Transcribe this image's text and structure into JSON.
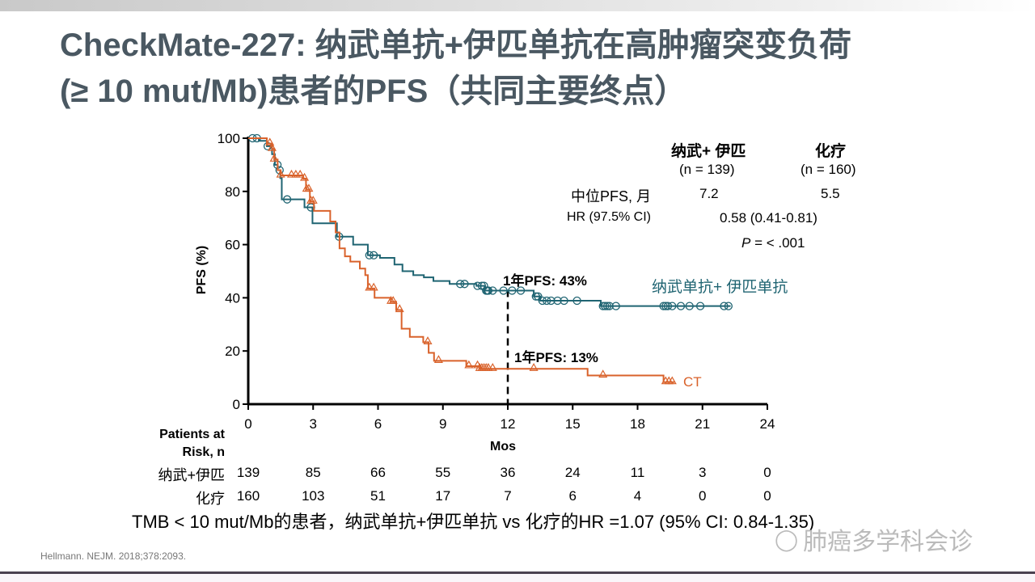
{
  "title": {
    "line1": "CheckMate-227: 纳武单抗+伊匹单抗在高肿瘤突变负荷",
    "line2": "(≥ 10 mut/Mb)患者的PFS（共同主要终点）"
  },
  "stats_table": {
    "col1_header": "纳武+ 伊匹",
    "col1_n": "(n = 139)",
    "col2_header": "化疗",
    "col2_n": "(n = 160)",
    "median_label": "中位PFS, 月",
    "median_col1": "7.2",
    "median_col2": "5.5",
    "hr_label": "HR (97.5% CI)",
    "hr_value": "0.58 (0.41-0.81)",
    "p_label": "P",
    "p_value": " = < .001"
  },
  "annotations": {
    "nivo_1yr": "1年PFS: 43%",
    "ct_1yr": "1年PFS: 13%"
  },
  "risk_table": {
    "header_line1": "Patients at",
    "header_line2": "Risk, n",
    "rows": [
      {
        "label": "纳武+伊匹",
        "values": [
          "139",
          "85",
          "66",
          "55",
          "36",
          "24",
          "11",
          "3",
          "0"
        ]
      },
      {
        "label": "化疗",
        "values": [
          "160",
          "103",
          "51",
          "17",
          "7",
          "6",
          "4",
          "0",
          "0"
        ]
      }
    ]
  },
  "footnote": "TMB < 10 mut/Mb的患者，纳武单抗+伊匹单抗 vs 化疗的HR =1.07 (95% CI: 0.84-1.35)",
  "citation": "Hellmann. NEJM. 2018;378:2093.",
  "watermark": "肺癌多学科会诊",
  "chart_data": {
    "type": "line",
    "subtype": "kaplan-meier",
    "xlabel": "Mos",
    "ylabel": "PFS (%)",
    "xlim": [
      0,
      24
    ],
    "ylim": [
      0,
      100
    ],
    "xticks": [
      "0",
      "3",
      "6",
      "9",
      "12",
      "15",
      "18",
      "21",
      "24"
    ],
    "yticks": [
      "0",
      "20",
      "40",
      "60",
      "80",
      "100"
    ],
    "reference_line_x": 12,
    "series": [
      {
        "name": "纳武单抗+ 伊匹单抗",
        "color": "#1f6472",
        "marker": "circle",
        "steps": [
          [
            0,
            100
          ],
          [
            0.49,
            99
          ],
          [
            0.86,
            97
          ],
          [
            1.1,
            94
          ],
          [
            1.23,
            90
          ],
          [
            1.36,
            88
          ],
          [
            1.48,
            85
          ],
          [
            1.55,
            77
          ],
          [
            2.6,
            74
          ],
          [
            2.97,
            68
          ],
          [
            4.1,
            63
          ],
          [
            4.85,
            60
          ],
          [
            5.53,
            56
          ],
          [
            6.09,
            55
          ],
          [
            6.76,
            52.5
          ],
          [
            7.13,
            50
          ],
          [
            7.63,
            48.5
          ],
          [
            8.12,
            47.7
          ],
          [
            8.56,
            46.3
          ],
          [
            9.31,
            45.2
          ],
          [
            10.55,
            44.5
          ],
          [
            10.93,
            42.7
          ],
          [
            13.2,
            40.5
          ],
          [
            13.5,
            38.9
          ],
          [
            16.3,
            36.9
          ],
          [
            22.3,
            36.9
          ]
        ],
        "censored": [
          0.2,
          0.4,
          0.9,
          1.35,
          1.45,
          1.8,
          2.9,
          4.2,
          5.6,
          5.8,
          9.8,
          10.0,
          10.6,
          10.8,
          10.9,
          11.0,
          11.05,
          11.1,
          11.3,
          11.8,
          12.2,
          12.6,
          13.3,
          13.4,
          13.6,
          13.8,
          14.0,
          14.3,
          14.6,
          15.2,
          16.4,
          16.5,
          16.6,
          16.7,
          17.0,
          19.2,
          19.3,
          19.4,
          19.6,
          20.0,
          20.4,
          20.9,
          22.0,
          22.2
        ],
        "legend_label": "纳武单抗+ 伊匹单抗"
      },
      {
        "name": "CT",
        "color": "#d9622b",
        "marker": "triangle",
        "steps": [
          [
            0,
            100
          ],
          [
            0.86,
            98
          ],
          [
            1.1,
            96
          ],
          [
            1.2,
            92
          ],
          [
            1.36,
            88
          ],
          [
            1.5,
            86
          ],
          [
            2.54,
            84.8
          ],
          [
            2.67,
            80.7
          ],
          [
            2.85,
            76.2
          ],
          [
            3.04,
            72.7
          ],
          [
            3.79,
            68.7
          ],
          [
            4.04,
            64.6
          ],
          [
            4.22,
            58.6
          ],
          [
            4.47,
            55.6
          ],
          [
            4.72,
            53.6
          ],
          [
            5.16,
            51
          ],
          [
            5.41,
            48.5
          ],
          [
            5.53,
            43.5
          ],
          [
            5.84,
            40
          ],
          [
            6.59,
            38.5
          ],
          [
            6.84,
            35.4
          ],
          [
            7.09,
            28.4
          ],
          [
            7.47,
            25.3
          ],
          [
            8.09,
            23.3
          ],
          [
            8.34,
            19.3
          ],
          [
            8.59,
            16.3
          ],
          [
            10.08,
            14.3
          ],
          [
            10.7,
            13.3
          ],
          [
            13.0,
            13.3
          ],
          [
            15.69,
            10.8
          ],
          [
            19.2,
            8.3
          ],
          [
            19.7,
            8.3
          ]
        ],
        "censored": [
          1.0,
          1.1,
          1.2,
          1.5,
          2.0,
          2.2,
          2.4,
          2.6,
          2.7,
          2.8,
          2.9,
          3.0,
          5.6,
          5.8,
          6.6,
          6.7,
          7.0,
          8.3,
          8.8,
          10.2,
          10.6,
          10.7,
          10.8,
          10.9,
          11.0,
          11.1,
          11.3,
          13.2,
          16.4,
          19.3,
          19.45,
          19.6
        ],
        "legend_label": "CT"
      }
    ]
  }
}
